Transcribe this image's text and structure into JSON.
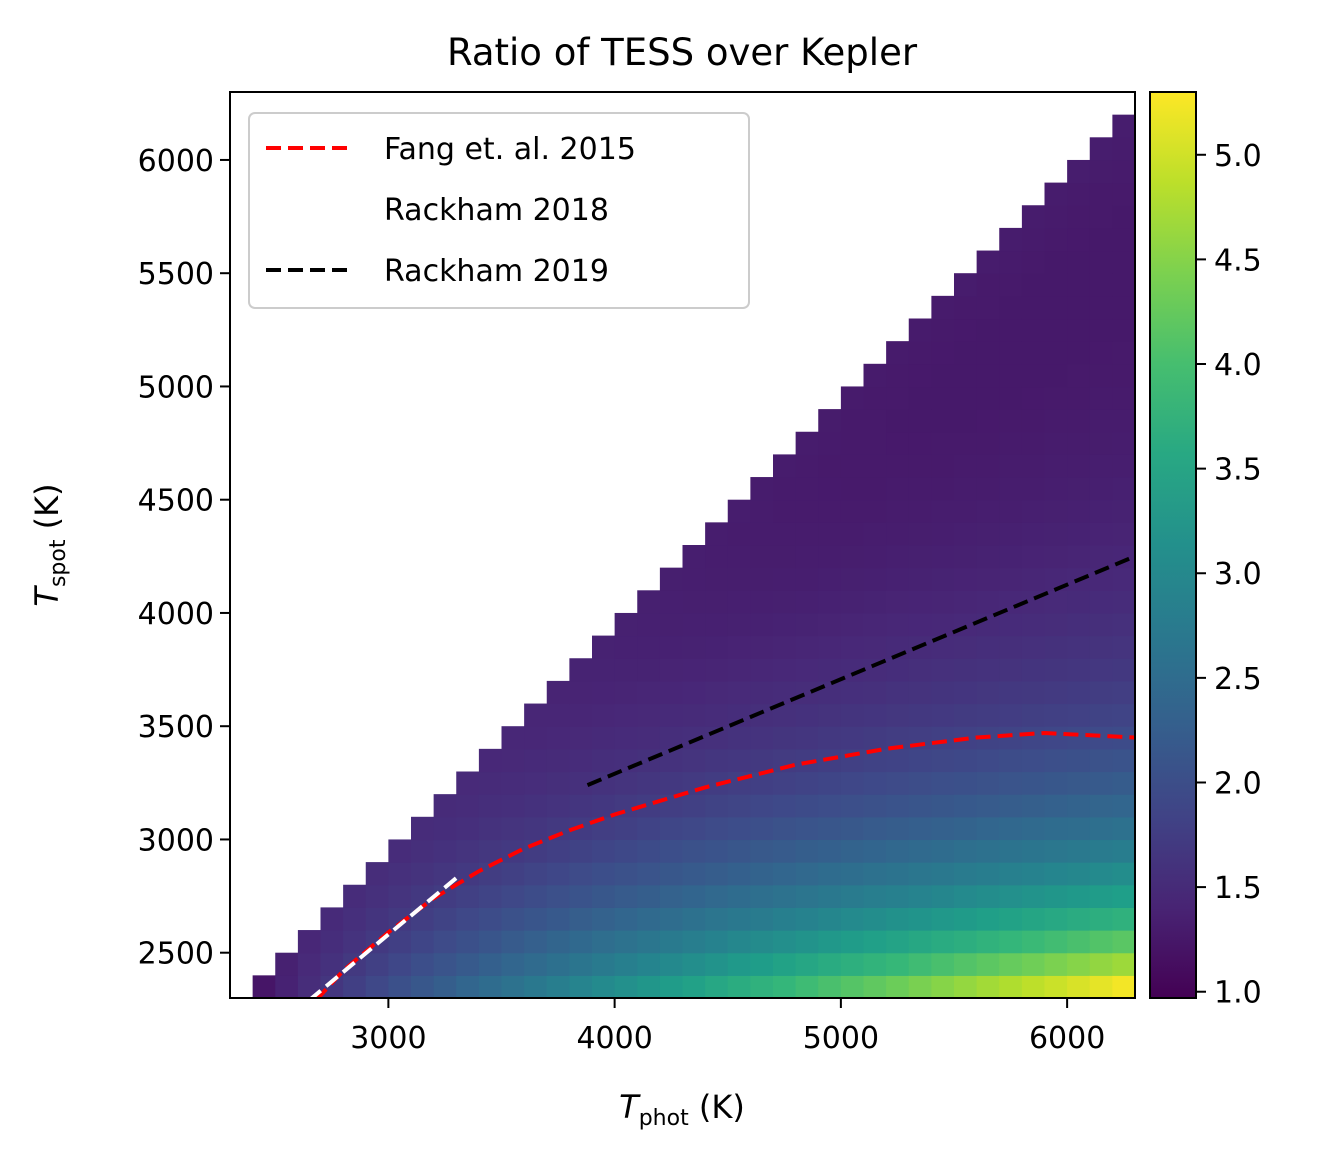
{
  "chart_data": {
    "type": "heatmap",
    "title": "Ratio of TESS over Kepler",
    "xlabel": {
      "main": "T",
      "sub": "phot",
      "unit": " (K)"
    },
    "ylabel": {
      "main": "T",
      "sub": "spot",
      "unit": " (K)"
    },
    "xlim": [
      2300,
      6300
    ],
    "ylim": [
      2300,
      6300
    ],
    "grid_step": 100,
    "x_ticks": [
      3000,
      4000,
      5000,
      6000
    ],
    "x_tick_labels": [
      "3000",
      "4000",
      "5000",
      "6000"
    ],
    "y_ticks": [
      2500,
      3000,
      3500,
      4000,
      4500,
      5000,
      5500,
      6000
    ],
    "y_tick_labels": [
      "2500",
      "3000",
      "3500",
      "4000",
      "4500",
      "5000",
      "5500",
      "6000"
    ],
    "colorbar": {
      "colormap": "viridis",
      "range": [
        0.97,
        5.3
      ],
      "ticks": [
        1.0,
        1.5,
        2.0,
        2.5,
        3.0,
        3.5,
        4.0,
        4.5,
        5.0
      ],
      "tick_labels": [
        "1.0",
        "1.5",
        "2.0",
        "2.5",
        "3.0",
        "3.5",
        "4.0",
        "4.5",
        "5.0"
      ]
    },
    "legend": {
      "position": "upper-left",
      "entries": [
        {
          "label": "Fang et. al. 2015",
          "color": "#ff0000",
          "style": "dashed"
        },
        {
          "label": "Rackham 2018",
          "color": "#ffffff",
          "style": "dashed"
        },
        {
          "label": "Rackham 2019",
          "color": "#000000",
          "style": "dashed"
        }
      ]
    },
    "series": [
      {
        "label": "Fang et. al. 2015",
        "color": "#ff0000",
        "x": [
          2680,
          2800,
          3000,
          3200,
          3400,
          3600,
          3800,
          4000,
          4400,
          4800,
          5200,
          5600,
          5900,
          6300
        ],
        "y": [
          2290,
          2420,
          2590,
          2740,
          2860,
          2960,
          3040,
          3110,
          3230,
          3330,
          3400,
          3450,
          3470,
          3450
        ]
      },
      {
        "label": "Rackham 2018",
        "color": "#ffffff",
        "x": [
          2650,
          3300
        ],
        "y": [
          2290,
          2830
        ]
      },
      {
        "label": "Rackham 2019",
        "color": "#000000",
        "x": [
          3880,
          6300
        ],
        "y": [
          3240,
          4250
        ]
      }
    ]
  }
}
